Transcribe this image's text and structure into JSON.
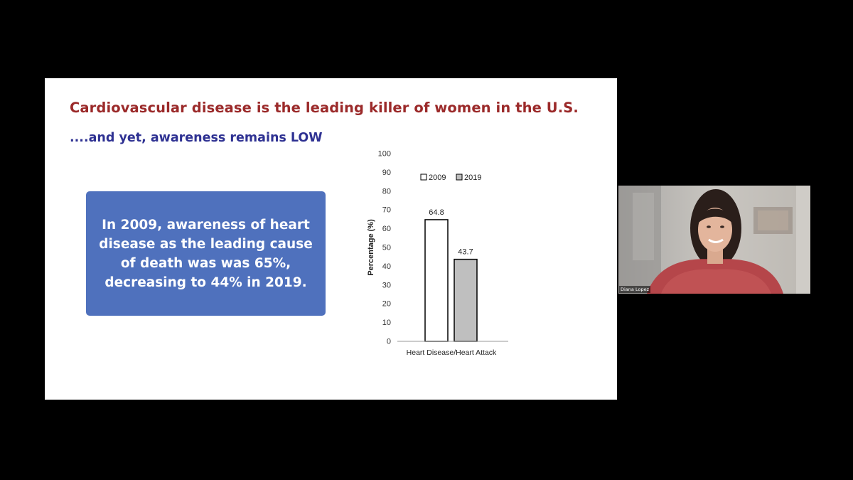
{
  "slide": {
    "title": "Cardiovascular disease is the leading killer of women in the U.S.",
    "subtitle": "....and yet, awareness remains LOW",
    "callout": "In 2009, awareness of heart disease as the leading cause of death was was 65%, decreasing to 44% in 2019."
  },
  "colors": {
    "background": "#000000",
    "slide_bg": "#ffffff",
    "title": "#9b2a2a",
    "subtitle": "#2e3192",
    "callout_bg": "#4f71bd",
    "bar_2009": "#ffffff",
    "bar_2019": "#bfbfbf"
  },
  "chart_data": {
    "type": "bar",
    "categories": [
      "Heart Disease/Heart Attack"
    ],
    "series": [
      {
        "name": "2009",
        "values": [
          64.8
        ]
      },
      {
        "name": "2019",
        "values": [
          43.7
        ]
      }
    ],
    "data_labels": [
      "64.8",
      "43.7"
    ],
    "title": "",
    "xlabel": "Heart Disease/Heart Attack",
    "ylabel": "Percentage (%)",
    "ylim": [
      0,
      100
    ],
    "yticks": [
      0,
      10,
      20,
      30,
      40,
      50,
      60,
      70,
      80,
      90,
      100
    ],
    "legend": [
      "2009",
      "2019"
    ],
    "legend_position": "top"
  },
  "webcam": {
    "participant_name": "Diana Lopez"
  }
}
